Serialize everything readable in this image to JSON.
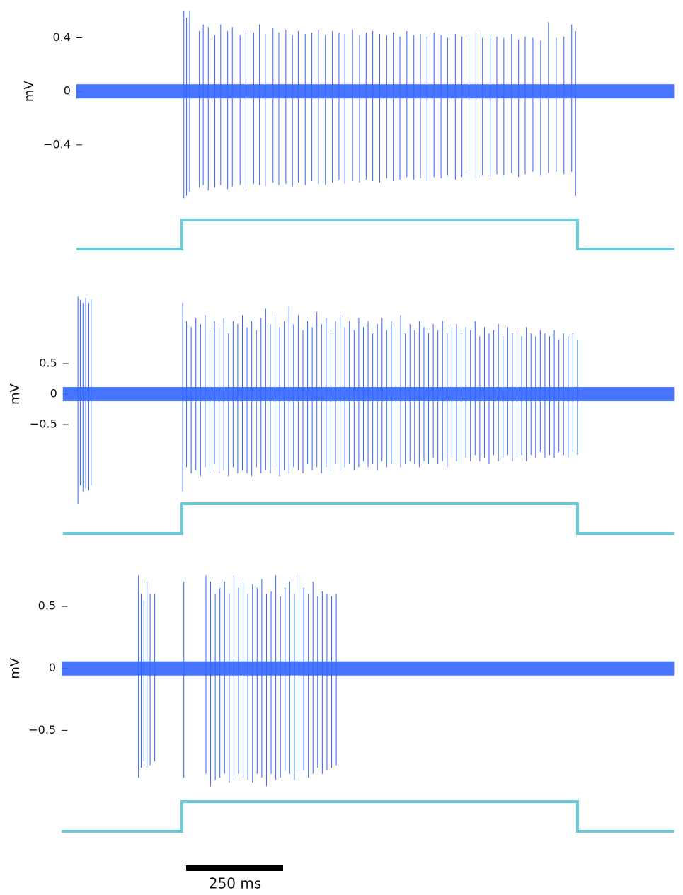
{
  "chart_data": [
    {
      "type": "line",
      "ylabel": "mV",
      "color": "#3366ff",
      "xlim": [
        -272,
        1269
      ],
      "ylim": [
        -0.85,
        0.63
      ],
      "yticks": [
        0.4,
        0,
        {
          "value": -0.4,
          "label": "−0.4"
        }
      ],
      "spike_times": [
        5,
        12,
        20,
        45,
        55,
        68,
        85,
        100,
        118,
        130,
        150,
        165,
        185,
        200,
        215,
        235,
        250,
        268,
        285,
        300,
        318,
        335,
        352,
        370,
        388,
        405,
        420,
        440,
        458,
        475,
        492,
        510,
        528,
        545,
        562,
        580,
        598,
        615,
        632,
        650,
        668,
        685,
        705,
        722,
        740,
        758,
        775,
        795,
        812,
        830,
        850,
        868,
        885,
        905,
        925,
        945,
        965,
        985,
        1005,
        1015
      ],
      "spike_peaks": [
        0.6,
        0.55,
        0.6,
        0.45,
        0.5,
        0.48,
        0.42,
        0.5,
        0.45,
        0.48,
        0.42,
        0.46,
        0.44,
        0.5,
        0.43,
        0.47,
        0.44,
        0.46,
        0.42,
        0.45,
        0.43,
        0.44,
        0.46,
        0.42,
        0.45,
        0.44,
        0.43,
        0.46,
        0.42,
        0.44,
        0.45,
        0.43,
        0.42,
        0.44,
        0.41,
        0.45,
        0.42,
        0.43,
        0.41,
        0.44,
        0.42,
        0.4,
        0.43,
        0.41,
        0.42,
        0.44,
        0.4,
        0.42,
        0.41,
        0.4,
        0.43,
        0.39,
        0.41,
        0.4,
        0.38,
        0.52,
        0.4,
        0.41,
        0.5,
        0.45
      ],
      "spike_troughs": [
        -0.8,
        -0.78,
        -0.75,
        -0.72,
        -0.7,
        -0.74,
        -0.72,
        -0.7,
        -0.73,
        -0.71,
        -0.7,
        -0.72,
        -0.69,
        -0.7,
        -0.71,
        -0.68,
        -0.7,
        -0.69,
        -0.71,
        -0.68,
        -0.7,
        -0.67,
        -0.69,
        -0.7,
        -0.68,
        -0.66,
        -0.69,
        -0.67,
        -0.68,
        -0.66,
        -0.67,
        -0.68,
        -0.65,
        -0.67,
        -0.66,
        -0.64,
        -0.66,
        -0.65,
        -0.67,
        -0.64,
        -0.65,
        -0.63,
        -0.66,
        -0.64,
        -0.62,
        -0.65,
        -0.63,
        -0.64,
        -0.62,
        -0.63,
        -0.61,
        -0.64,
        -0.62,
        -0.6,
        -0.63,
        -0.61,
        -0.6,
        -0.62,
        -0.6,
        -0.78
      ],
      "stimulus_on": 0,
      "stimulus_off": 1020,
      "stimulus_color": "#6ccbd9"
    },
    {
      "type": "line",
      "ylabel": "mV",
      "color": "#3366ff",
      "xlim": [
        -307,
        1269
      ],
      "ylim": [
        -1.8,
        1.65
      ],
      "yticks": [
        0.5,
        0,
        {
          "value": -0.5,
          "label": "−0.5"
        }
      ],
      "spike_times": [
        -268,
        -262,
        -255,
        -248,
        -240,
        -234,
        2,
        12,
        24,
        36,
        48,
        60,
        72,
        84,
        96,
        108,
        120,
        132,
        144,
        156,
        168,
        180,
        192,
        204,
        216,
        228,
        240,
        252,
        264,
        276,
        288,
        300,
        312,
        324,
        336,
        348,
        360,
        372,
        384,
        396,
        408,
        420,
        432,
        444,
        456,
        468,
        480,
        492,
        504,
        516,
        528,
        540,
        552,
        564,
        576,
        588,
        600,
        612,
        624,
        636,
        648,
        660,
        672,
        684,
        696,
        708,
        720,
        732,
        744,
        756,
        768,
        780,
        792,
        804,
        816,
        828,
        840,
        852,
        864,
        876,
        888,
        900,
        912,
        924,
        936,
        948,
        960,
        972,
        984,
        996,
        1008,
        1020
      ],
      "spike_peaks": [
        1.6,
        1.55,
        1.5,
        1.58,
        1.5,
        1.55,
        1.5,
        1.2,
        1.1,
        1.25,
        1.15,
        1.3,
        1.05,
        1.2,
        1.1,
        1.25,
        1.0,
        1.2,
        1.15,
        1.3,
        1.1,
        1.2,
        1.05,
        1.25,
        1.4,
        1.15,
        1.3,
        1.1,
        1.2,
        1.45,
        1.15,
        1.3,
        1.05,
        1.2,
        1.1,
        1.35,
        1.15,
        1.25,
        1.0,
        1.2,
        1.3,
        1.1,
        1.2,
        1.05,
        1.25,
        1.1,
        1.2,
        1.0,
        1.15,
        1.25,
        1.05,
        1.2,
        1.1,
        1.3,
        1.0,
        1.15,
        1.05,
        1.2,
        1.1,
        1.0,
        1.15,
        1.05,
        1.2,
        1.0,
        1.1,
        1.15,
        1.0,
        1.1,
        1.05,
        1.2,
        0.95,
        1.1,
        1.0,
        1.05,
        1.15,
        0.95,
        1.1,
        1.0,
        1.05,
        0.95,
        1.1,
        1.0,
        0.95,
        1.05,
        1.0,
        0.95,
        1.05,
        0.9,
        1.0,
        0.95,
        1.0,
        0.9
      ],
      "spike_troughs": [
        -1.8,
        -1.5,
        -1.6,
        -1.55,
        -1.58,
        -1.5,
        -1.6,
        -1.2,
        -1.3,
        -1.25,
        -1.35,
        -1.2,
        -1.3,
        -1.15,
        -1.3,
        -1.25,
        -1.35,
        -1.2,
        -1.3,
        -1.25,
        -1.3,
        -1.35,
        -1.2,
        -1.3,
        -1.25,
        -1.3,
        -1.2,
        -1.35,
        -1.25,
        -1.3,
        -1.2,
        -1.25,
        -1.3,
        -1.15,
        -1.25,
        -1.2,
        -1.3,
        -1.2,
        -1.25,
        -1.15,
        -1.25,
        -1.2,
        -1.15,
        -1.25,
        -1.2,
        -1.1,
        -1.2,
        -1.15,
        -1.25,
        -1.1,
        -1.2,
        -1.15,
        -1.1,
        -1.2,
        -1.15,
        -1.1,
        -1.15,
        -1.2,
        -1.1,
        -1.15,
        -1.05,
        -1.15,
        -1.1,
        -1.2,
        -1.05,
        -1.1,
        -1.15,
        -1.05,
        -1.1,
        -1.0,
        -1.1,
        -1.05,
        -1.15,
        -1.0,
        -1.1,
        -1.05,
        -1.0,
        -1.1,
        -1.05,
        -1.0,
        -1.1,
        -1.0,
        -1.05,
        -0.95,
        -1.05,
        -1.0,
        -1.05,
        -0.95,
        -1.0,
        -1.05,
        -0.95,
        -1.0
      ],
      "stimulus_on": 0,
      "stimulus_off": 1020,
      "stimulus_color": "#6ccbd9"
    },
    {
      "type": "line",
      "ylabel": "mV",
      "color": "#3366ff",
      "xlim": [
        -310,
        1269
      ],
      "ylim": [
        -1.0,
        0.78
      ],
      "yticks": [
        0.5,
        0,
        {
          "value": -0.5,
          "label": "−0.5"
        }
      ],
      "spike_times": [
        -112,
        -105,
        -98,
        -90,
        -82,
        -70,
        5,
        62,
        74,
        86,
        98,
        110,
        122,
        134,
        146,
        158,
        170,
        182,
        194,
        206,
        218,
        230,
        242,
        254,
        266,
        278,
        290,
        302,
        314,
        326,
        338,
        350,
        362,
        374,
        386,
        398
      ],
      "spike_peaks": [
        0.75,
        0.6,
        0.55,
        0.7,
        0.6,
        0.6,
        0.7,
        0.75,
        0.7,
        0.6,
        0.65,
        0.7,
        0.6,
        0.75,
        0.65,
        0.7,
        0.6,
        0.68,
        0.65,
        0.72,
        0.6,
        0.62,
        0.75,
        0.58,
        0.65,
        0.7,
        0.6,
        0.75,
        0.65,
        0.6,
        0.7,
        0.58,
        0.62,
        0.6,
        0.58,
        0.6
      ],
      "spike_troughs": [
        -0.88,
        -0.8,
        -0.75,
        -0.8,
        -0.78,
        -0.75,
        -0.88,
        -0.85,
        -0.95,
        -0.9,
        -0.88,
        -0.85,
        -0.92,
        -0.9,
        -0.85,
        -0.88,
        -0.9,
        -0.92,
        -0.85,
        -0.88,
        -0.95,
        -0.85,
        -0.9,
        -0.88,
        -0.82,
        -0.85,
        -0.9,
        -0.85,
        -0.82,
        -0.88,
        -0.85,
        -0.8,
        -0.85,
        -0.82,
        -0.8,
        -0.78
      ],
      "stimulus_on": 0,
      "stimulus_off": 1020,
      "stimulus_color": "#6ccbd9"
    }
  ],
  "scale_bar": {
    "value": 250,
    "label": "250 ms"
  }
}
